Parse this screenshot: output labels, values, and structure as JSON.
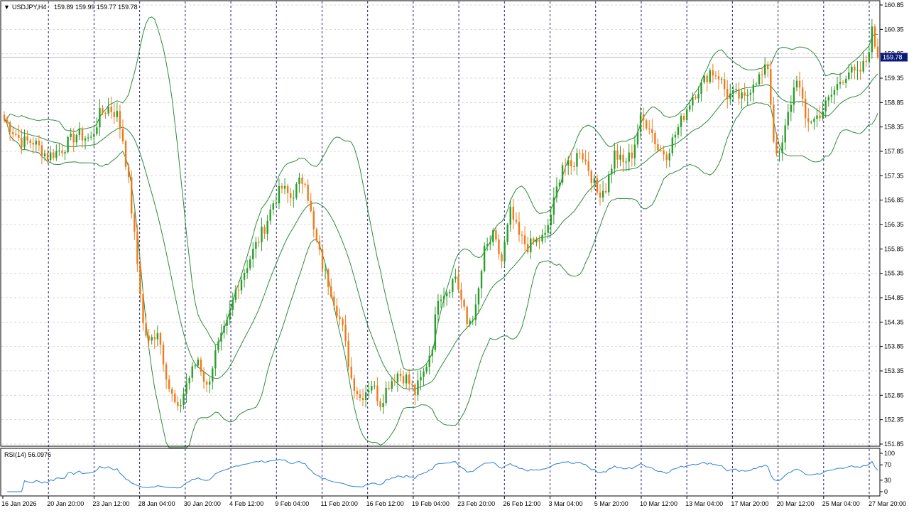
{
  "header": {
    "symbol_label": "USDJPY,H4",
    "ohlc": "159.89 159.99 159.77 159.78",
    "arrow": "▼"
  },
  "price_tag": "159.78",
  "rsi_label": "RSI(14) 56.0976",
  "colors": {
    "bull": "#2a9d2a",
    "bear": "#f07a1a",
    "bands": "#2e8b3a",
    "rsi": "#2a7fd4",
    "grid": "#d8d8d8",
    "sep": "#1a1a7a",
    "tag_bg": "#0a1a7a"
  },
  "chart_data": [
    {
      "type": "candlestick",
      "title": "USDJPY,H4",
      "y_ticks": [
        "160.85",
        "160.35",
        "159.85",
        "159.35",
        "158.85",
        "158.35",
        "157.85",
        "157.35",
        "156.85",
        "156.35",
        "155.85",
        "155.35",
        "154.85",
        "154.35",
        "153.85",
        "153.35",
        "152.85",
        "152.35",
        "151.85"
      ],
      "ylim": [
        151.85,
        160.85
      ],
      "x_ticks": [
        "16 Jan 2026",
        "20 Jan 20:00",
        "23 Jan 12:00",
        "28 Jan 04:00",
        "30 Jan 20:00",
        "4 Feb 12:00",
        "9 Feb 04:00",
        "11 Feb 20:00",
        "16 Feb 12:00",
        "19 Feb 04:00",
        "23 Feb 20:00",
        "26 Feb 12:00",
        "3 Mar 04:00",
        "5 Mar 20:00",
        "10 Mar 12:00",
        "13 Mar 04:00",
        "17 Mar 20:00",
        "20 Mar 12:00",
        "25 Mar 04:00",
        "27 Mar 20:00"
      ],
      "last_price": 159.78,
      "close_path": [
        [
          0,
          158.5
        ],
        [
          6,
          158.05
        ],
        [
          10,
          158.05
        ],
        [
          15,
          157.75
        ],
        [
          20,
          157.9
        ],
        [
          25,
          158.2
        ],
        [
          30,
          158.1
        ],
        [
          33,
          158.6
        ],
        [
          36,
          158.75
        ],
        [
          39,
          158.6
        ],
        [
          41,
          158.1
        ],
        [
          43,
          157.2
        ],
        [
          45,
          156.1
        ],
        [
          47,
          155.0
        ],
        [
          48,
          154.3
        ],
        [
          50,
          153.9
        ],
        [
          53,
          154.2
        ],
        [
          57,
          153.0
        ],
        [
          60,
          152.5
        ],
        [
          63,
          153.1
        ],
        [
          67,
          153.6
        ],
        [
          70,
          153.0
        ],
        [
          73,
          153.7
        ],
        [
          77,
          154.3
        ],
        [
          80,
          155.0
        ],
        [
          83,
          155.4
        ],
        [
          86,
          155.8
        ],
        [
          90,
          156.3
        ],
        [
          93,
          156.8
        ],
        [
          96,
          157.1
        ],
        [
          99,
          156.9
        ],
        [
          102,
          157.2
        ],
        [
          104,
          157.3
        ],
        [
          107,
          156.2
        ],
        [
          110,
          155.5
        ],
        [
          113,
          155.0
        ],
        [
          117,
          154.2
        ],
        [
          120,
          153.2
        ],
        [
          123,
          152.8
        ],
        [
          127,
          153.1
        ],
        [
          130,
          152.7
        ],
        [
          133,
          153.1
        ],
        [
          136,
          153.3
        ],
        [
          139,
          153.2
        ],
        [
          142,
          152.9
        ],
        [
          145,
          153.3
        ],
        [
          148,
          153.9
        ],
        [
          150,
          154.9
        ],
        [
          153,
          155.0
        ],
        [
          156,
          155.3
        ],
        [
          158,
          154.8
        ],
        [
          160,
          154.3
        ],
        [
          163,
          154.6
        ],
        [
          166,
          155.8
        ],
        [
          169,
          156.1
        ],
        [
          172,
          155.6
        ],
        [
          175,
          156.6
        ],
        [
          178,
          156.1
        ],
        [
          181,
          155.9
        ],
        [
          184,
          156.0
        ],
        [
          187,
          156.1
        ],
        [
          190,
          156.8
        ],
        [
          193,
          157.6
        ],
        [
          196,
          157.5
        ],
        [
          199,
          157.9
        ],
        [
          202,
          157.5
        ],
        [
          205,
          157.0
        ],
        [
          208,
          157.1
        ],
        [
          211,
          157.8
        ],
        [
          214,
          157.6
        ],
        [
          217,
          157.8
        ],
        [
          220,
          158.5
        ],
        [
          223,
          158.4
        ],
        [
          226,
          157.9
        ],
        [
          229,
          157.8
        ],
        [
          232,
          158.2
        ],
        [
          235,
          158.6
        ],
        [
          238,
          159.0
        ],
        [
          241,
          159.2
        ],
        [
          244,
          159.5
        ],
        [
          247,
          159.4
        ],
        [
          250,
          159.0
        ],
        [
          253,
          159.0
        ],
        [
          256,
          158.9
        ],
        [
          259,
          159.3
        ],
        [
          262,
          159.4
        ],
        [
          264,
          159.6
        ],
        [
          266,
          158.1
        ],
        [
          268,
          157.7
        ],
        [
          271,
          158.6
        ],
        [
          274,
          159.4
        ],
        [
          277,
          158.5
        ],
        [
          280,
          158.5
        ],
        [
          283,
          158.7
        ],
        [
          286,
          159.0
        ],
        [
          289,
          159.3
        ],
        [
          292,
          159.5
        ],
        [
          295,
          159.4
        ],
        [
          298,
          159.7
        ],
        [
          300,
          160.3
        ],
        [
          302,
          159.78
        ]
      ],
      "indicators": [
        "Bollinger Bands"
      ]
    },
    {
      "type": "line",
      "title": "RSI(14) 56.0976",
      "y_ticks": [
        "100",
        "70",
        "30",
        "0"
      ],
      "ylim": [
        0,
        100
      ],
      "last_value": 56.0976
    }
  ]
}
